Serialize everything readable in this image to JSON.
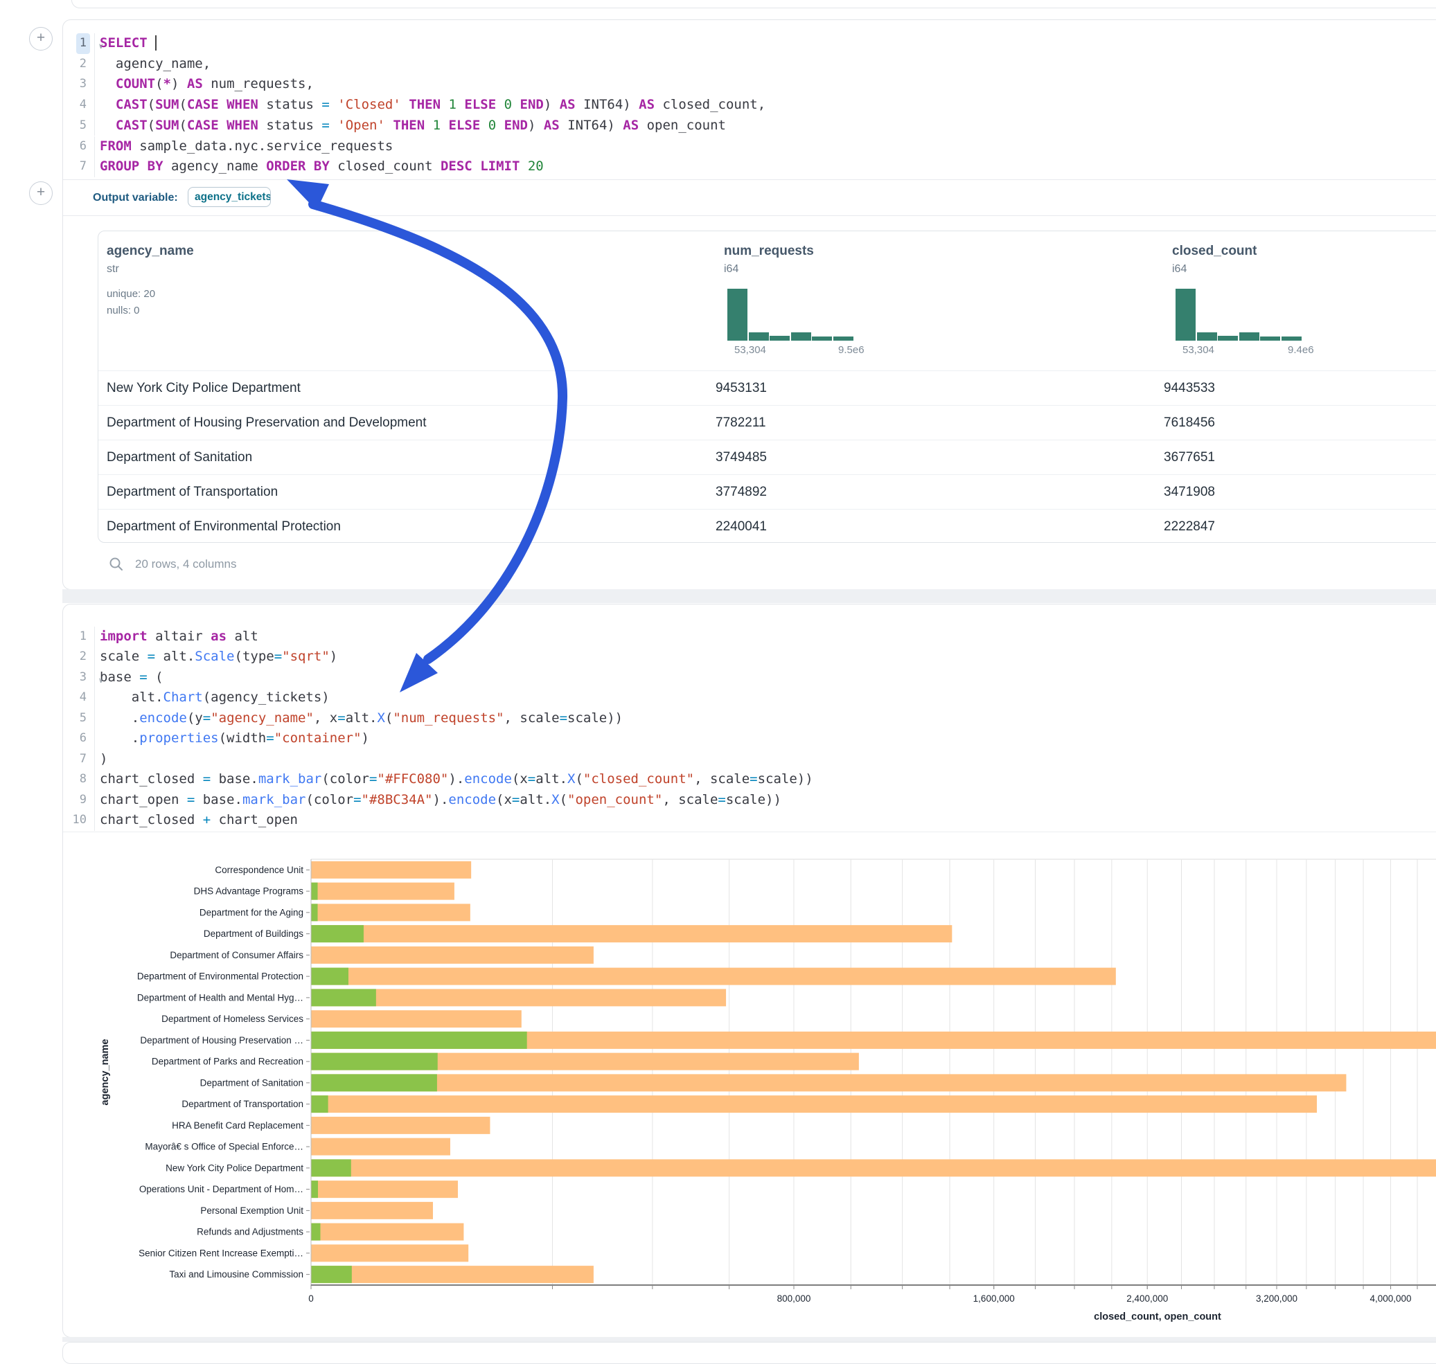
{
  "ui": {
    "add_cell_button": "+",
    "output_variable_label": "Output variable:",
    "output_variable_value": "agency_tickets",
    "table_footer": "20 rows, 4 columns"
  },
  "colors": {
    "closed_bar": "#FFC080",
    "open_bar": "#8BC34A",
    "hist_bar": "#35806E",
    "arrow": "#2B57D9"
  },
  "sql_cell": {
    "lines": [
      {
        "n": "1",
        "active": true,
        "fold": true,
        "tokens": [
          [
            "kw",
            "SELECT"
          ],
          [
            "pl",
            " "
          ],
          [
            "cursor",
            ""
          ]
        ]
      },
      {
        "n": "2",
        "tokens": [
          [
            "pl",
            "  agency_name,"
          ]
        ]
      },
      {
        "n": "3",
        "tokens": [
          [
            "pl",
            "  "
          ],
          [
            "kw",
            "COUNT"
          ],
          [
            "pl",
            "("
          ],
          [
            "kw",
            "*"
          ],
          [
            "pl",
            ") "
          ],
          [
            "kw",
            "AS"
          ],
          [
            "pl",
            " num_requests,"
          ]
        ]
      },
      {
        "n": "4",
        "tokens": [
          [
            "pl",
            "  "
          ],
          [
            "kw",
            "CAST"
          ],
          [
            "pl",
            "("
          ],
          [
            "kw",
            "SUM"
          ],
          [
            "pl",
            "("
          ],
          [
            "kw",
            "CASE"
          ],
          [
            "pl",
            " "
          ],
          [
            "kw",
            "WHEN"
          ],
          [
            "pl",
            " status "
          ],
          [
            "op",
            "="
          ],
          [
            "pl",
            " "
          ],
          [
            "str",
            "'Closed'"
          ],
          [
            "pl",
            " "
          ],
          [
            "kw",
            "THEN"
          ],
          [
            "pl",
            " "
          ],
          [
            "num",
            "1"
          ],
          [
            "pl",
            " "
          ],
          [
            "kw",
            "ELSE"
          ],
          [
            "pl",
            " "
          ],
          [
            "num",
            "0"
          ],
          [
            "pl",
            " "
          ],
          [
            "kw",
            "END"
          ],
          [
            "pl",
            ") "
          ],
          [
            "kw",
            "AS"
          ],
          [
            "pl",
            " INT64) "
          ],
          [
            "kw",
            "AS"
          ],
          [
            "pl",
            " closed_count,"
          ]
        ]
      },
      {
        "n": "5",
        "tokens": [
          [
            "pl",
            "  "
          ],
          [
            "kw",
            "CAST"
          ],
          [
            "pl",
            "("
          ],
          [
            "kw",
            "SUM"
          ],
          [
            "pl",
            "("
          ],
          [
            "kw",
            "CASE"
          ],
          [
            "pl",
            " "
          ],
          [
            "kw",
            "WHEN"
          ],
          [
            "pl",
            " status "
          ],
          [
            "op",
            "="
          ],
          [
            "pl",
            " "
          ],
          [
            "str",
            "'Open'"
          ],
          [
            "pl",
            " "
          ],
          [
            "kw",
            "THEN"
          ],
          [
            "pl",
            " "
          ],
          [
            "num",
            "1"
          ],
          [
            "pl",
            " "
          ],
          [
            "kw",
            "ELSE"
          ],
          [
            "pl",
            " "
          ],
          [
            "num",
            "0"
          ],
          [
            "pl",
            " "
          ],
          [
            "kw",
            "END"
          ],
          [
            "pl",
            ") "
          ],
          [
            "kw",
            "AS"
          ],
          [
            "pl",
            " INT64) "
          ],
          [
            "kw",
            "AS"
          ],
          [
            "pl",
            " open_count"
          ]
        ]
      },
      {
        "n": "6",
        "tokens": [
          [
            "kw",
            "FROM"
          ],
          [
            "pl",
            " sample_data.nyc.service_requests"
          ]
        ]
      },
      {
        "n": "7",
        "tokens": [
          [
            "kw",
            "GROUP"
          ],
          [
            "pl",
            " "
          ],
          [
            "kw",
            "BY"
          ],
          [
            "pl",
            " agency_name "
          ],
          [
            "kw",
            "ORDER"
          ],
          [
            "pl",
            " "
          ],
          [
            "kw",
            "BY"
          ],
          [
            "pl",
            " closed_count "
          ],
          [
            "kw",
            "DESC"
          ],
          [
            "pl",
            " "
          ],
          [
            "kw",
            "LIMIT"
          ],
          [
            "pl",
            " "
          ],
          [
            "num",
            "20"
          ]
        ]
      }
    ]
  },
  "python_cell": {
    "lines": [
      {
        "n": "1",
        "tokens": [
          [
            "kw",
            "import"
          ],
          [
            "pl",
            " altair "
          ],
          [
            "kw",
            "as"
          ],
          [
            "pl",
            " alt"
          ]
        ]
      },
      {
        "n": "2",
        "tokens": [
          [
            "pl",
            "scale "
          ],
          [
            "op",
            "="
          ],
          [
            "pl",
            " alt."
          ],
          [
            "fn",
            "Scale"
          ],
          [
            "pl",
            "(type"
          ],
          [
            "op",
            "="
          ],
          [
            "str",
            "\"sqrt\""
          ],
          [
            "pl",
            ")"
          ]
        ]
      },
      {
        "n": "3",
        "fold": true,
        "tokens": [
          [
            "pl",
            "base "
          ],
          [
            "op",
            "="
          ],
          [
            "pl",
            " ("
          ]
        ]
      },
      {
        "n": "4",
        "tokens": [
          [
            "pl",
            "    alt."
          ],
          [
            "fn",
            "Chart"
          ],
          [
            "pl",
            "(agency_tickets)"
          ]
        ]
      },
      {
        "n": "5",
        "tokens": [
          [
            "pl",
            "    ."
          ],
          [
            "fn",
            "encode"
          ],
          [
            "pl",
            "(y"
          ],
          [
            "op",
            "="
          ],
          [
            "str",
            "\"agency_name\""
          ],
          [
            "pl",
            ", x"
          ],
          [
            "op",
            "="
          ],
          [
            "pl",
            "alt."
          ],
          [
            "fn",
            "X"
          ],
          [
            "pl",
            "("
          ],
          [
            "str",
            "\"num_requests\""
          ],
          [
            "pl",
            ", scale"
          ],
          [
            "op",
            "="
          ],
          [
            "pl",
            "scale))"
          ]
        ]
      },
      {
        "n": "6",
        "tokens": [
          [
            "pl",
            "    ."
          ],
          [
            "fn",
            "properties"
          ],
          [
            "pl",
            "(width"
          ],
          [
            "op",
            "="
          ],
          [
            "str",
            "\"container\""
          ],
          [
            "pl",
            ")"
          ]
        ]
      },
      {
        "n": "7",
        "tokens": [
          [
            "pl",
            ")"
          ]
        ]
      },
      {
        "n": "8",
        "tokens": [
          [
            "pl",
            "chart_closed "
          ],
          [
            "op",
            "="
          ],
          [
            "pl",
            " base."
          ],
          [
            "fn",
            "mark_bar"
          ],
          [
            "pl",
            "(color"
          ],
          [
            "op",
            "="
          ],
          [
            "str",
            "\"#FFC080\""
          ],
          [
            "pl",
            ")."
          ],
          [
            "fn",
            "encode"
          ],
          [
            "pl",
            "(x"
          ],
          [
            "op",
            "="
          ],
          [
            "pl",
            "alt."
          ],
          [
            "fn",
            "X"
          ],
          [
            "pl",
            "("
          ],
          [
            "str",
            "\"closed_count\""
          ],
          [
            "pl",
            ", scale"
          ],
          [
            "op",
            "="
          ],
          [
            "pl",
            "scale))"
          ]
        ]
      },
      {
        "n": "9",
        "tokens": [
          [
            "pl",
            "chart_open "
          ],
          [
            "op",
            "="
          ],
          [
            "pl",
            " base."
          ],
          [
            "fn",
            "mark_bar"
          ],
          [
            "pl",
            "(color"
          ],
          [
            "op",
            "="
          ],
          [
            "str",
            "\"#8BC34A\""
          ],
          [
            "pl",
            ")."
          ],
          [
            "fn",
            "encode"
          ],
          [
            "pl",
            "(x"
          ],
          [
            "op",
            "="
          ],
          [
            "pl",
            "alt."
          ],
          [
            "fn",
            "X"
          ],
          [
            "pl",
            "("
          ],
          [
            "str",
            "\"open_count\""
          ],
          [
            "pl",
            ", scale"
          ],
          [
            "op",
            "="
          ],
          [
            "pl",
            "scale))"
          ]
        ]
      },
      {
        "n": "10",
        "tokens": [
          [
            "pl",
            "chart_closed "
          ],
          [
            "op",
            "+"
          ],
          [
            "pl",
            " chart_open"
          ]
        ]
      }
    ]
  },
  "table": {
    "columns": [
      {
        "name": "agency_name",
        "type": "str",
        "stats": [
          "unique: 20",
          "nulls: 0"
        ]
      },
      {
        "name": "num_requests",
        "type": "i64",
        "hist": {
          "bins": [
            1,
            0.16,
            0.09,
            0.16,
            0.08,
            0.08
          ],
          "min_label": "53,304",
          "max_label": "9.5e6"
        }
      },
      {
        "name": "closed_count",
        "type": "i64",
        "hist": {
          "bins": [
            1,
            0.16,
            0.09,
            0.16,
            0.08,
            0.08
          ],
          "min_label": "53,304",
          "max_label": "9.4e6"
        }
      }
    ],
    "rows": [
      [
        "New York City Police Department",
        "9453131",
        "9443533"
      ],
      [
        "Department of Housing Preservation and Development",
        "7782211",
        "7618456"
      ],
      [
        "Department of Sanitation",
        "3749485",
        "3677651"
      ],
      [
        "Department of Transportation",
        "3774892",
        "3471908"
      ],
      [
        "Department of Environmental Protection",
        "2240041",
        "2222847"
      ]
    ]
  },
  "chart_data": {
    "type": "bar",
    "orientation": "horizontal",
    "x_axis": {
      "title": "closed_count, open_count",
      "scale": "sqrt",
      "tick_step": 200000,
      "labeled_ticks": [
        0,
        800000,
        1600000,
        2400000,
        3200000,
        4000000
      ],
      "visible_max": 4350000
    },
    "y_axis": {
      "title": "agency_name"
    },
    "series": [
      {
        "name": "closed_count",
        "color": "#FFC080"
      },
      {
        "name": "open_count",
        "color": "#8BC34A"
      }
    ],
    "rows": [
      {
        "label": "Correspondence Unit",
        "closed": 88000,
        "open": 0
      },
      {
        "label": "DHS Advantage Programs",
        "closed": 70500,
        "open": 150
      },
      {
        "label": "Department for the Aging",
        "closed": 87000,
        "open": 150
      },
      {
        "label": "Department of Buildings",
        "closed": 1410000,
        "open": 9500
      },
      {
        "label": "Department of Consumer Affairs",
        "closed": 274000,
        "open": 0
      },
      {
        "label": "Department of Environmental Protection",
        "closed": 2222847,
        "open": 4800
      },
      {
        "label": "Department of Health and Mental Hyg…",
        "closed": 591000,
        "open": 14500
      },
      {
        "label": "Department of Homeless Services",
        "closed": 152000,
        "open": 0
      },
      {
        "label": "Department of Housing Preservation …",
        "closed": 7618456,
        "open": 160000
      },
      {
        "label": "Department of Parks and Recreation",
        "closed": 1030000,
        "open": 55000
      },
      {
        "label": "Department of Sanitation",
        "closed": 3677651,
        "open": 54500
      },
      {
        "label": "Department of Transportation",
        "closed": 3471908,
        "open": 1000
      },
      {
        "label": "HRA Benefit Card Replacement",
        "closed": 110000,
        "open": 0
      },
      {
        "label": "Mayorâ€ s Office of Special Enforce…",
        "closed": 66500,
        "open": 0
      },
      {
        "label": "New York City Police Department",
        "closed": 9443533,
        "open": 5500
      },
      {
        "label": "Operations Unit - Department of Hom…",
        "closed": 74000,
        "open": 165
      },
      {
        "label": "Personal Exemption Unit",
        "closed": 51000,
        "open": 0
      },
      {
        "label": "Refunds and Adjustments",
        "closed": 80000,
        "open": 300
      },
      {
        "label": "Senior Citizen Rent Increase Exempti…",
        "closed": 85000,
        "open": 0
      },
      {
        "label": "Taxi and Limousine Commission",
        "closed": 274000,
        "open": 5700
      }
    ]
  }
}
